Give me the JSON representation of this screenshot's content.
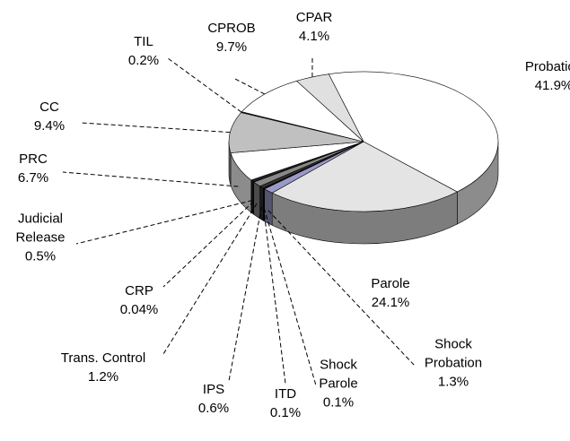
{
  "chart_data": {
    "type": "pie",
    "categories": [
      "Probation",
      "Parole",
      "Shock Probation",
      "Shock Parole",
      "ITD",
      "IPS",
      "Trans. Control",
      "CRP",
      "Judicial Release",
      "PRC",
      "CC",
      "TIL",
      "CPROB",
      "CPAR"
    ],
    "values": [
      41.9,
      24.1,
      1.3,
      0.1,
      0.1,
      0.6,
      1.2,
      0.04,
      0.5,
      6.7,
      9.4,
      0.2,
      9.7,
      4.1
    ],
    "value_labels": [
      "41.9%",
      "24.1%",
      "1.3%",
      "0.1%",
      "0.1%",
      "0.6%",
      "1.2%",
      "0.04%",
      "0.5%",
      "6.7%",
      "9.4%",
      "0.2%",
      "9.7%",
      "4.1%"
    ],
    "colors": [
      "#ffffff",
      "#e4e4e4",
      "#9a9ac8",
      "#660066",
      "#ffffcc",
      "#333333",
      "#888888",
      "#cccccc",
      "#222222",
      "#ffffff",
      "#c0c0c0",
      "#333333",
      "#ffffff",
      "#e0e0e0"
    ]
  }
}
